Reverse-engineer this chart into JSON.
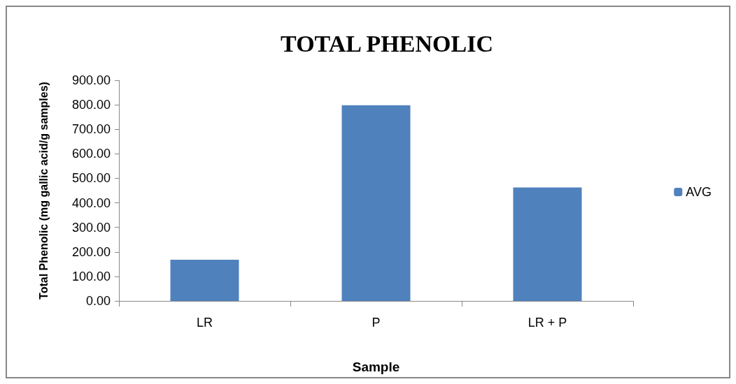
{
  "chart_data": {
    "type": "bar",
    "title": "TOTAL PHENOLIC",
    "xlabel": "Sample",
    "ylabel": "Total Phenolic (mg gallic acid/g samples)",
    "categories": [
      "LR",
      "P",
      "LR + P"
    ],
    "series": [
      {
        "name": "AVG",
        "color": "#4f81bd",
        "values": [
          168,
          798,
          463
        ]
      }
    ],
    "ylim": [
      0,
      900
    ],
    "yticks": [
      {
        "value": 0,
        "label": "0.00"
      },
      {
        "value": 100,
        "label": "100.00"
      },
      {
        "value": 200,
        "label": "200.00"
      },
      {
        "value": 300,
        "label": "300.00"
      },
      {
        "value": 400,
        "label": "400.00"
      },
      {
        "value": 500,
        "label": "500.00"
      },
      {
        "value": 600,
        "label": "600.00"
      },
      {
        "value": 700,
        "label": "700.00"
      },
      {
        "value": 800,
        "label": "800.00"
      },
      {
        "value": 900,
        "label": "900.00"
      }
    ],
    "grid": false,
    "legend": "right"
  }
}
